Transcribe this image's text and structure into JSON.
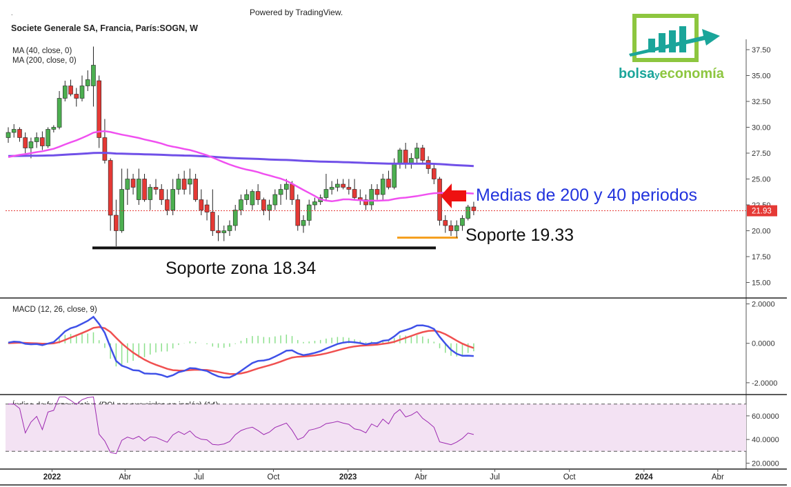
{
  "header": {
    "dot": ".",
    "powered": "Powered by TradingView.",
    "symbol": "Societe Generale SA, Francia, París:SOGN, W"
  },
  "logo": {
    "text_a": "bolsa",
    "text_b": "y",
    "text_c": "economía"
  },
  "colors": {
    "up": "#4caf50",
    "down": "#e53935",
    "ma40": "#f050f0",
    "ma200": "#7050e8",
    "macd": "#3f51e8",
    "signal": "#f05050",
    "hist": "#8be08b",
    "rsi": "#9c27b0",
    "rsi_band": "#f3e2f3",
    "arrow": "#ee1111",
    "note_blue": "#2233dd",
    "support_orange": "#f5a020",
    "logo_green": "#8dc63f",
    "logo_teal": "#1aa59a"
  },
  "chart_data": [
    {
      "type": "candlestick",
      "name": "price",
      "legend": [
        "MA (40, close, 0)",
        "MA (200, close, 0)"
      ],
      "yticks": [
        "37.50",
        "35.00",
        "32.50",
        "30.00",
        "27.50",
        "25.00",
        "22.50",
        "20.00",
        "17.50",
        "15.00"
      ],
      "yrange": [
        13.5,
        38.5
      ],
      "last_price": "21.93",
      "x_start": "2021-11-08",
      "x_end": "2024-05-06",
      "candles": [
        [
          "2021-11-08",
          29.0,
          30.0,
          28.5,
          29.5
        ],
        [
          "2021-11-15",
          29.5,
          30.3,
          29.0,
          29.8
        ],
        [
          "2021-11-22",
          29.8,
          30.0,
          28.6,
          29.0
        ],
        [
          "2021-11-29",
          29.0,
          29.5,
          27.5,
          28.0
        ],
        [
          "2021-12-06",
          28.0,
          29.0,
          27.0,
          28.6
        ],
        [
          "2021-12-13",
          28.6,
          29.5,
          28.0,
          29.0
        ],
        [
          "2021-12-20",
          29.0,
          29.6,
          27.8,
          28.2
        ],
        [
          "2021-12-27",
          28.2,
          30.0,
          28.0,
          29.8
        ],
        [
          "2022-01-03",
          29.8,
          30.2,
          29.5,
          30.0
        ],
        [
          "2022-01-10",
          30.0,
          33.5,
          29.8,
          32.8
        ],
        [
          "2022-01-17",
          32.8,
          34.5,
          32.5,
          34.0
        ],
        [
          "2022-01-24",
          34.0,
          34.6,
          33.0,
          33.2
        ],
        [
          "2022-01-31",
          33.2,
          33.8,
          32.0,
          32.8
        ],
        [
          "2022-02-07",
          32.8,
          35.0,
          32.5,
          34.0
        ],
        [
          "2022-02-14",
          34.0,
          35.5,
          33.5,
          34.6
        ],
        [
          "2022-02-21",
          34.0,
          37.8,
          32.0,
          36.0
        ],
        [
          "2022-02-28",
          34.5,
          35.0,
          28.0,
          29.0
        ],
        [
          "2022-03-07",
          29.0,
          30.8,
          26.5,
          26.8
        ],
        [
          "2022-03-14",
          26.8,
          27.0,
          20.0,
          21.5
        ],
        [
          "2022-03-21",
          21.5,
          23.0,
          18.5,
          20.0
        ],
        [
          "2022-03-28",
          20.0,
          26.0,
          19.8,
          24.0
        ],
        [
          "2022-04-04",
          24.0,
          26.0,
          22.5,
          25.0
        ],
        [
          "2022-04-11",
          25.0,
          25.5,
          23.5,
          24.2
        ],
        [
          "2022-04-18",
          23.0,
          26.0,
          22.5,
          25.0
        ],
        [
          "2022-04-25",
          25.0,
          25.5,
          22.8,
          23.0
        ],
        [
          "2022-05-02",
          23.0,
          24.5,
          22.0,
          24.2
        ],
        [
          "2022-05-09",
          24.2,
          25.0,
          23.5,
          24.0
        ],
        [
          "2022-05-16",
          24.0,
          24.5,
          22.5,
          23.0
        ],
        [
          "2022-05-23",
          23.0,
          24.0,
          21.5,
          22.0
        ],
        [
          "2022-05-30",
          22.0,
          25.0,
          21.5,
          24.0
        ],
        [
          "2022-06-06",
          24.0,
          25.5,
          23.5,
          25.0
        ],
        [
          "2022-06-13",
          25.0,
          25.8,
          23.5,
          24.0
        ],
        [
          "2022-06-20",
          24.5,
          26.0,
          23.5,
          25.0
        ],
        [
          "2022-06-27",
          25.0,
          25.5,
          22.8,
          23.0
        ],
        [
          "2022-07-04",
          23.0,
          24.0,
          21.5,
          22.0
        ],
        [
          "2022-07-11",
          22.5,
          23.0,
          21.0,
          21.8
        ],
        [
          "2022-07-18",
          21.8,
          24.0,
          19.5,
          20.0
        ],
        [
          "2022-07-25",
          20.0,
          21.5,
          19.0,
          19.8
        ],
        [
          "2022-08-01",
          19.8,
          20.5,
          19.0,
          20.0
        ],
        [
          "2022-08-08",
          20.0,
          21.0,
          19.5,
          20.5
        ],
        [
          "2022-08-15",
          20.5,
          22.5,
          20.0,
          22.0
        ],
        [
          "2022-08-22",
          22.0,
          23.5,
          21.5,
          23.0
        ],
        [
          "2022-08-29",
          23.0,
          24.0,
          22.5,
          23.5
        ],
        [
          "2022-09-05",
          22.5,
          24.0,
          22.0,
          23.8
        ],
        [
          "2022-09-12",
          23.8,
          24.5,
          22.5,
          23.0
        ],
        [
          "2022-09-19",
          23.0,
          23.2,
          21.5,
          22.0
        ],
        [
          "2022-09-26",
          22.0,
          23.0,
          21.0,
          22.5
        ],
        [
          "2022-10-03",
          22.5,
          24.0,
          22.0,
          23.5
        ],
        [
          "2022-10-10",
          23.5,
          24.5,
          22.5,
          24.0
        ],
        [
          "2022-10-17",
          24.0,
          25.0,
          23.0,
          24.5
        ],
        [
          "2022-10-24",
          24.5,
          24.8,
          22.5,
          23.0
        ],
        [
          "2022-10-31",
          23.0,
          23.5,
          20.0,
          20.5
        ],
        [
          "2022-11-07",
          20.5,
          21.5,
          19.8,
          21.0
        ],
        [
          "2022-11-14",
          21.0,
          23.0,
          20.5,
          22.5
        ],
        [
          "2022-11-21",
          22.5,
          23.2,
          22.0,
          22.8
        ],
        [
          "2022-11-28",
          22.8,
          23.5,
          22.5,
          23.2
        ],
        [
          "2022-12-05",
          23.2,
          25.5,
          23.0,
          24.0
        ],
        [
          "2022-12-12",
          24.0,
          24.8,
          23.5,
          24.2
        ],
        [
          "2022-12-19",
          24.2,
          25.0,
          23.8,
          24.5
        ],
        [
          "2022-12-26",
          24.5,
          25.0,
          24.0,
          24.2
        ],
        [
          "2023-01-02",
          24.2,
          25.0,
          23.5,
          24.0
        ],
        [
          "2023-01-09",
          24.0,
          25.0,
          23.0,
          23.2
        ],
        [
          "2023-01-16",
          23.2,
          24.0,
          22.5,
          23.0
        ],
        [
          "2023-01-23",
          23.0,
          23.5,
          22.0,
          22.5
        ],
        [
          "2023-01-30",
          22.5,
          24.5,
          22.0,
          24.0
        ],
        [
          "2023-02-06",
          24.0,
          24.5,
          23.0,
          23.5
        ],
        [
          "2023-02-13",
          23.5,
          25.5,
          23.0,
          25.0
        ],
        [
          "2023-02-20",
          25.0,
          25.8,
          24.0,
          24.2
        ],
        [
          "2023-02-27",
          24.2,
          27.0,
          24.0,
          26.5
        ],
        [
          "2023-03-06",
          26.5,
          28.0,
          26.0,
          27.8
        ],
        [
          "2023-03-13",
          27.8,
          28.5,
          26.0,
          26.5
        ],
        [
          "2023-03-20",
          26.5,
          27.5,
          26.0,
          27.0
        ],
        [
          "2023-03-27",
          27.0,
          28.5,
          26.5,
          28.0
        ],
        [
          "2023-04-03",
          28.0,
          28.3,
          26.5,
          26.8
        ],
        [
          "2023-04-10",
          26.8,
          27.2,
          25.5,
          26.0
        ],
        [
          "2023-04-17",
          26.0,
          26.5,
          24.5,
          25.0
        ],
        [
          "2023-04-24",
          25.0,
          25.2,
          20.5,
          21.0
        ],
        [
          "2023-05-01",
          21.0,
          21.5,
          19.8,
          20.5
        ],
        [
          "2023-05-08",
          20.5,
          21.0,
          19.5,
          20.0
        ],
        [
          "2023-05-15",
          20.0,
          21.0,
          19.33,
          20.5
        ],
        [
          "2023-05-22",
          20.5,
          21.5,
          20.0,
          21.2
        ],
        [
          "2023-05-29",
          21.2,
          22.5,
          21.0,
          22.3
        ],
        [
          "2023-06-05",
          22.3,
          22.8,
          21.5,
          21.93
        ]
      ]
    },
    {
      "type": "line",
      "name": "macd",
      "legend": "MACD (12, 26, close, 9)",
      "yticks": [
        "2.0000",
        "0.0000",
        "-2.0000"
      ]
    },
    {
      "type": "line",
      "name": "rsi",
      "legend": "Índice de fuerza relativa (RSI por sus siglas en inglés) (14)",
      "yticks": [
        "60.0000",
        "40.0000",
        "20.0000"
      ]
    }
  ],
  "xaxis": {
    "labels": [
      {
        "t": "2022",
        "date": "2022-01-01",
        "bold": true
      },
      {
        "t": "Abr",
        "date": "2022-04-01",
        "bold": false
      },
      {
        "t": "Jul",
        "date": "2022-07-01",
        "bold": false
      },
      {
        "t": "Oct",
        "date": "2022-10-01",
        "bold": false
      },
      {
        "t": "2023",
        "date": "2023-01-01",
        "bold": true
      },
      {
        "t": "Abr",
        "date": "2023-04-01",
        "bold": false
      },
      {
        "t": "Jul",
        "date": "2023-07-01",
        "bold": false
      },
      {
        "t": "Oct",
        "date": "2023-10-01",
        "bold": false
      },
      {
        "t": "2024",
        "date": "2024-01-01",
        "bold": true
      },
      {
        "t": "Abr",
        "date": "2024-04-01",
        "bold": false
      }
    ]
  },
  "annotations": {
    "medias": "Medias de 200 y 40 periodos",
    "soporte1": "Soporte 19.33",
    "soporte1_value": 19.33,
    "soporte2": "Soporte zona 18.34",
    "soporte2_value": 18.34
  }
}
